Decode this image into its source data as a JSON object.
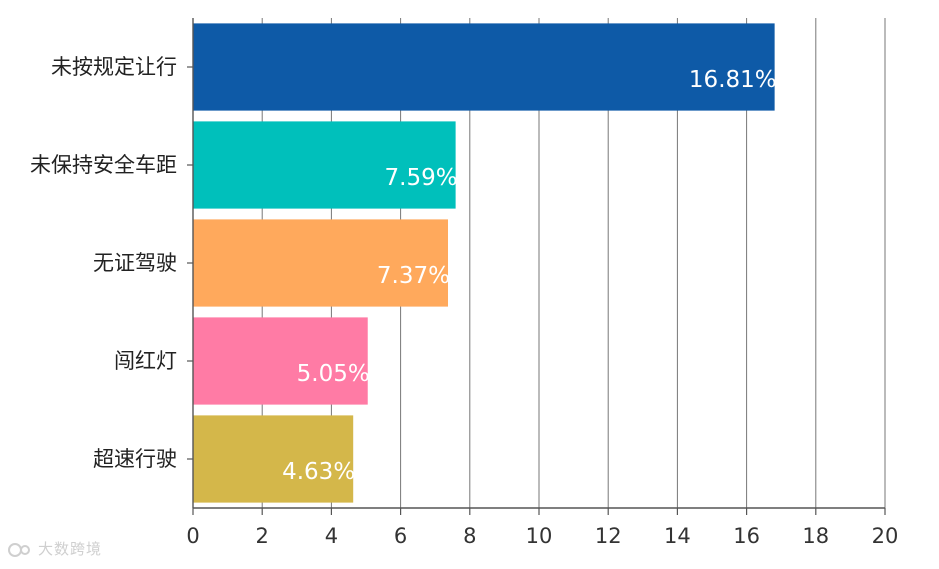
{
  "chart_data": {
    "type": "bar",
    "orientation": "horizontal",
    "categories": [
      "未按规定让行",
      "未保持安全车距",
      "无证驾驶",
      "闯红灯",
      "超速行驶"
    ],
    "values": [
      16.81,
      7.59,
      7.37,
      5.05,
      4.63
    ],
    "data_labels": [
      "16.81%",
      "7.59%",
      "7.37%",
      "5.05%",
      "4.63%"
    ],
    "colors": [
      "#0e5aa7",
      "#00c0bb",
      "#ffa95c",
      "#ff7ba5",
      "#d4b74a"
    ],
    "xlim": [
      0,
      20
    ],
    "xticks": [
      0,
      2,
      4,
      6,
      8,
      10,
      12,
      14,
      16,
      18,
      20
    ],
    "grid": true,
    "title": "",
    "xlabel": "",
    "ylabel": ""
  },
  "watermark": {
    "text": "大数跨境",
    "icon": "logo-icon"
  }
}
